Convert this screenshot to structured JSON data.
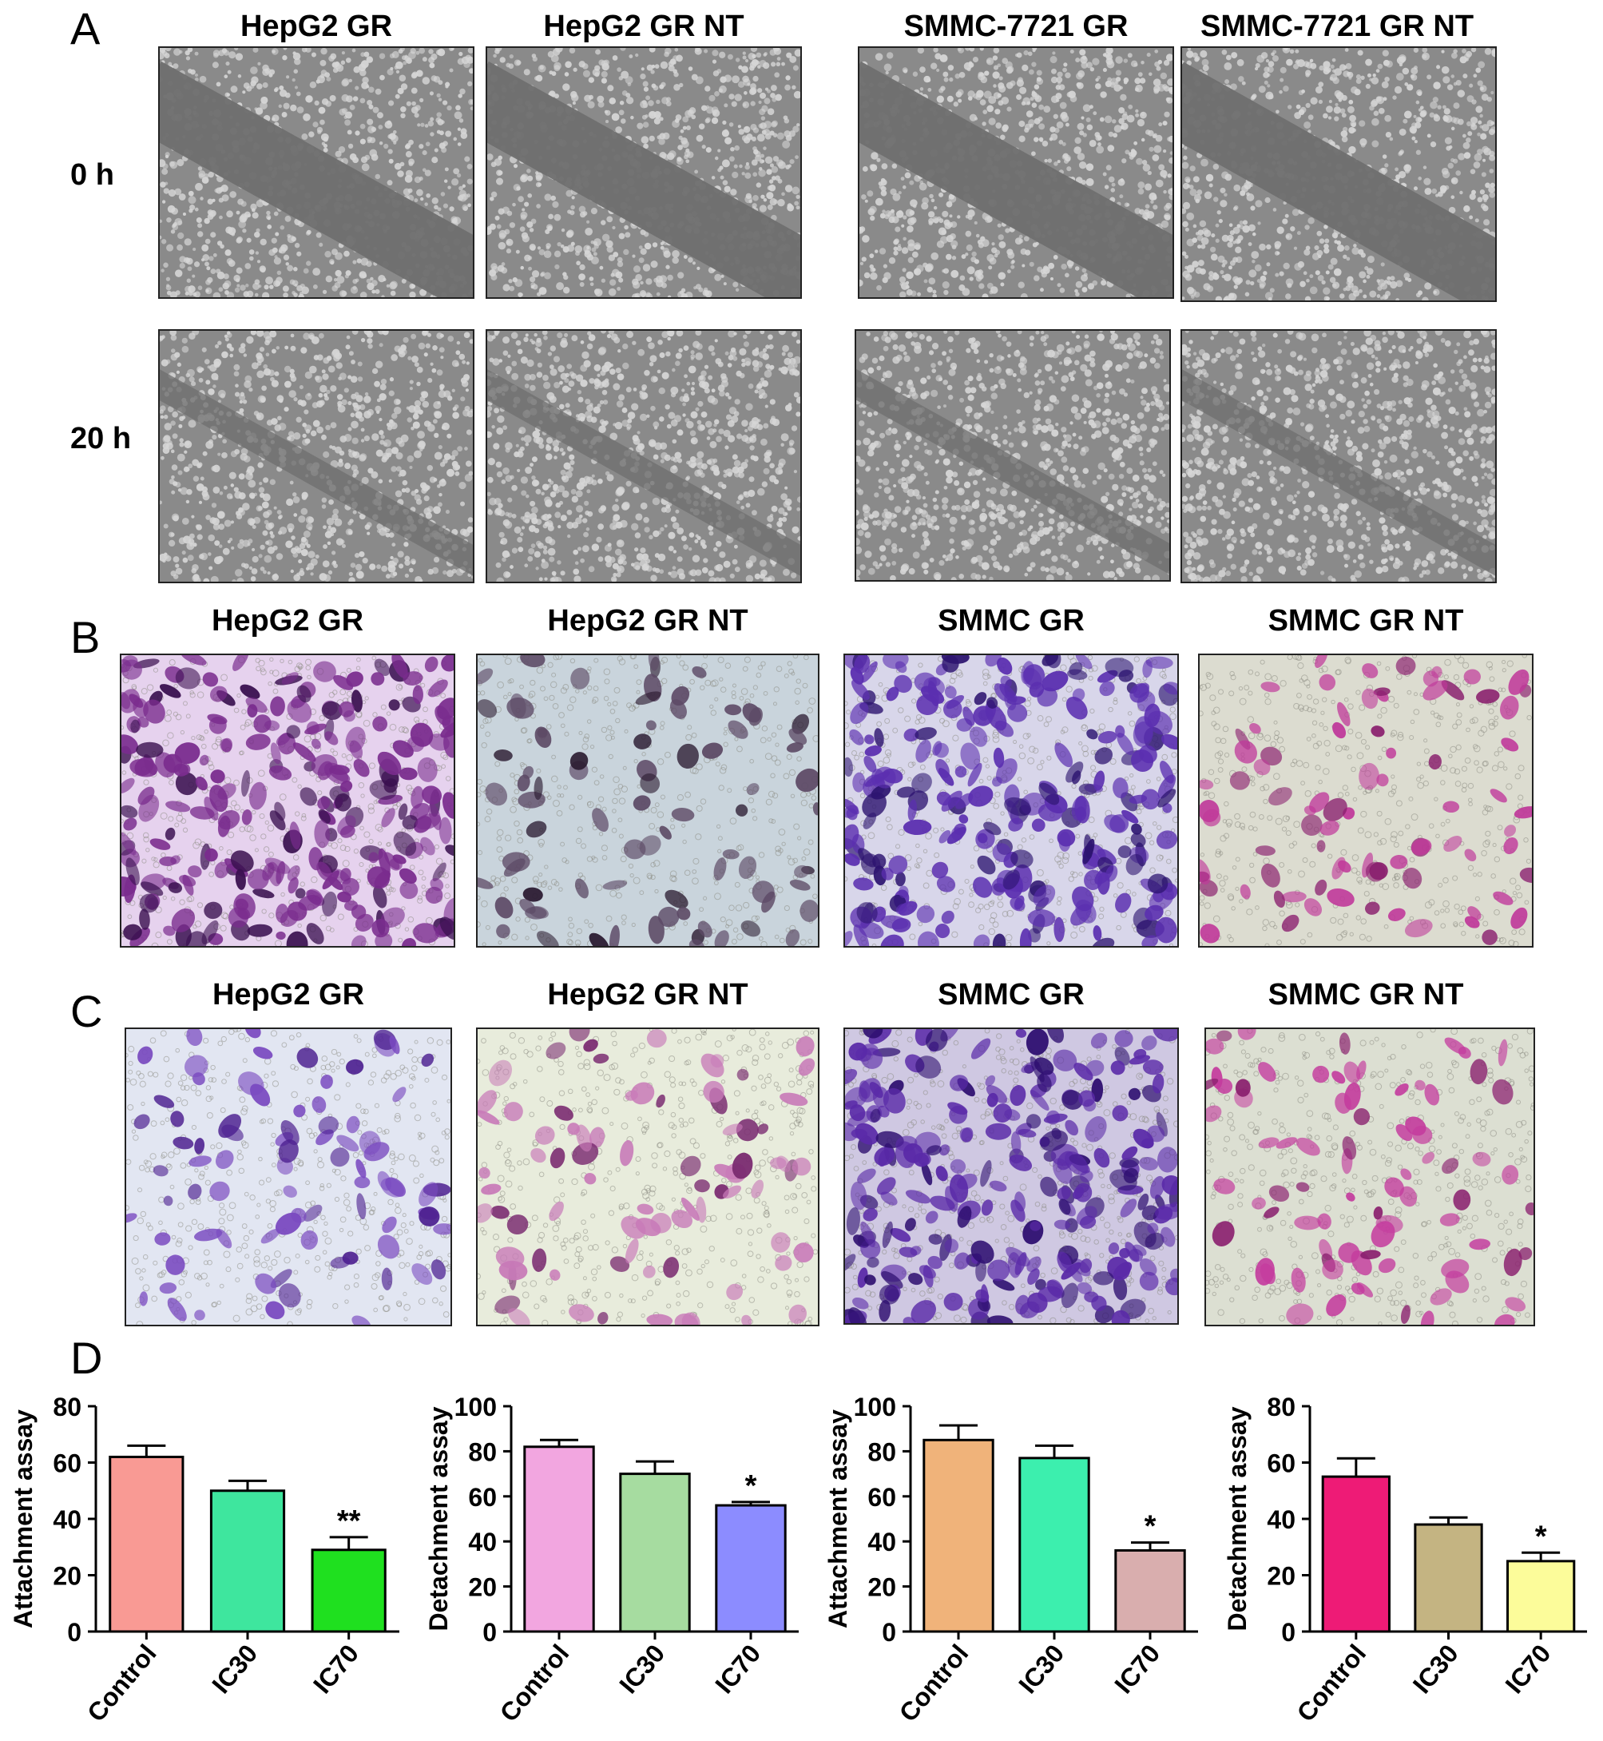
{
  "panels": {
    "A": {
      "letter": "A",
      "columns": [
        "HepG2 GR",
        "HepG2 GR NT",
        "SMMC-7721 GR",
        "SMMC-7721 GR NT"
      ],
      "rows": [
        "0 h",
        "20 h"
      ]
    },
    "B": {
      "letter": "B",
      "columns": [
        "HepG2 GR",
        "HepG2 GR NT",
        "SMMC GR",
        "SMMC GR  NT"
      ]
    },
    "C": {
      "letter": "C",
      "columns": [
        "HepG2 GR",
        "HepG2 GR NT",
        "SMMC GR",
        "SMMC GR  NT"
      ]
    },
    "D": {
      "letter": "D"
    }
  },
  "image_styles": {
    "wound": {
      "bg": "#8a8a8a",
      "cell": "#d6d6d6",
      "gap": "#6f6f6f"
    },
    "B": [
      {
        "bg": "#e6d2ee",
        "cell": "#7a2c8e",
        "dark": "#3a1050"
      },
      {
        "bg": "#c9d4dc",
        "cell": "#5d4a66",
        "dark": "#2a1a30"
      },
      {
        "bg": "#d8d6ea",
        "cell": "#5b2fb0",
        "dark": "#2d1470"
      },
      {
        "bg": "#dcdcd0",
        "cell": "#c0399a",
        "dark": "#8a1f6e"
      }
    ],
    "C": [
      {
        "bg": "#e2e6f2",
        "cell": "#7a4ac0",
        "dark": "#4d2090"
      },
      {
        "bg": "#e8ecdc",
        "cell": "#c87ab8",
        "dark": "#7a2a70"
      },
      {
        "bg": "#cfc8e2",
        "cell": "#5a2aa8",
        "dark": "#2e0f70"
      },
      {
        "bg": "#dcdfd2",
        "cell": "#c43c9e",
        "dark": "#8a1f6e"
      }
    ]
  },
  "chart_data": [
    {
      "type": "bar",
      "categories": [
        "Control",
        "IC30",
        "IC70"
      ],
      "values": [
        62,
        50,
        29
      ],
      "errors": [
        4,
        3.5,
        4.5
      ],
      "colors": [
        "#f99a94",
        "#3ee69e",
        "#1fe01f"
      ],
      "ylabel": "Attachment assay",
      "ylim": [
        0,
        80
      ],
      "yticks": [
        0,
        20,
        40,
        60,
        80
      ],
      "significance": [
        "",
        "",
        "**"
      ]
    },
    {
      "type": "bar",
      "categories": [
        "Control",
        "IC30",
        "IC70"
      ],
      "values": [
        82,
        70,
        56
      ],
      "errors": [
        3,
        5.5,
        1.5
      ],
      "colors": [
        "#f2a6e0",
        "#a6dca0",
        "#8c8cff"
      ],
      "ylabel": "Detachment assay",
      "ylim": [
        0,
        100
      ],
      "yticks": [
        0,
        20,
        40,
        60,
        80,
        100
      ],
      "significance": [
        "",
        "",
        "*"
      ]
    },
    {
      "type": "bar",
      "categories": [
        "Control",
        "IC30",
        "IC70"
      ],
      "values": [
        85,
        77,
        36
      ],
      "errors": [
        6.5,
        5.5,
        3.5
      ],
      "colors": [
        "#f0b37a",
        "#3cefae",
        "#d9aeae"
      ],
      "ylabel": "Attachment assay",
      "ylim": [
        0,
        100
      ],
      "yticks": [
        0,
        20,
        40,
        60,
        80,
        100
      ],
      "significance": [
        "",
        "",
        "*"
      ]
    },
    {
      "type": "bar",
      "categories": [
        "Control",
        "IC30",
        "IC70"
      ],
      "values": [
        55,
        38,
        25
      ],
      "errors": [
        6.5,
        2.5,
        3
      ],
      "colors": [
        "#ee1b76",
        "#c4b482",
        "#fcfc9a"
      ],
      "ylabel": "Detachment assay",
      "ylim": [
        0,
        80
      ],
      "yticks": [
        0,
        20,
        40,
        60,
        80
      ],
      "significance": [
        "",
        "",
        "*"
      ]
    }
  ]
}
